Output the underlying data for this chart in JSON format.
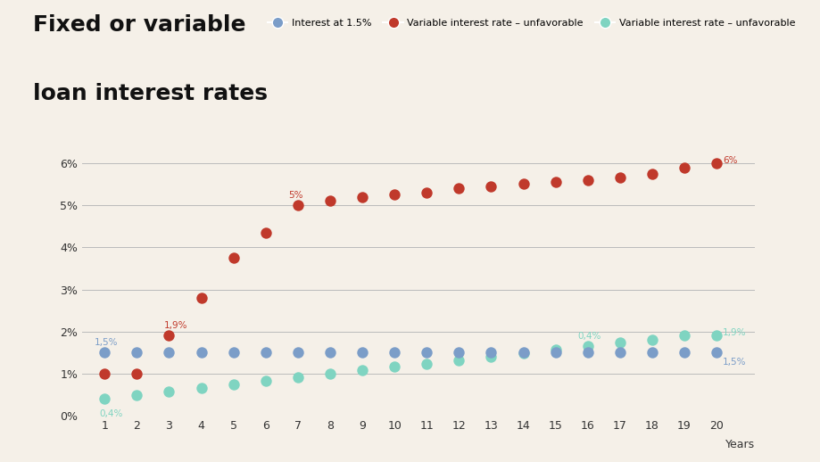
{
  "title_line1": "Fixed or variable",
  "title_line2": "loan interest rates",
  "title_fontsize": 18,
  "background_color": "#f5f0e8",
  "years": [
    1,
    2,
    3,
    4,
    5,
    6,
    7,
    8,
    9,
    10,
    11,
    12,
    13,
    14,
    15,
    16,
    17,
    18,
    19,
    20
  ],
  "fixed_rate": [
    1.5,
    1.5,
    1.5,
    1.5,
    1.5,
    1.5,
    1.5,
    1.5,
    1.5,
    1.5,
    1.5,
    1.5,
    1.5,
    1.5,
    1.5,
    1.5,
    1.5,
    1.5,
    1.5,
    1.5
  ],
  "unfavorable_rate": [
    1.0,
    1.0,
    1.9,
    2.8,
    3.75,
    4.35,
    5.0,
    5.1,
    5.2,
    5.25,
    5.3,
    5.4,
    5.45,
    5.5,
    5.55,
    5.6,
    5.65,
    5.75,
    5.9,
    6.0
  ],
  "favorable_rate": [
    0.4,
    0.5,
    0.58,
    0.67,
    0.75,
    0.84,
    0.92,
    1.0,
    1.08,
    1.16,
    1.24,
    1.32,
    1.4,
    1.49,
    1.57,
    1.65,
    1.73,
    1.81,
    1.9,
    1.9
  ],
  "fixed_color": "#7b9dc8",
  "unfavorable_color": "#c0392b",
  "favorable_color": "#7fd4c1",
  "ylim_min": 0,
  "ylim_max": 6.8,
  "yticks": [
    0,
    1,
    2,
    3,
    4,
    5,
    6
  ],
  "ytick_labels": [
    "0%",
    "1%",
    "2%",
    "3%",
    "4%",
    "5%",
    "6%"
  ],
  "legend_labels": [
    "Interest at 1.5%",
    "Variable interest rate – unfavorable",
    "Variable interest rate – unfavorable"
  ],
  "marker_size": 80
}
